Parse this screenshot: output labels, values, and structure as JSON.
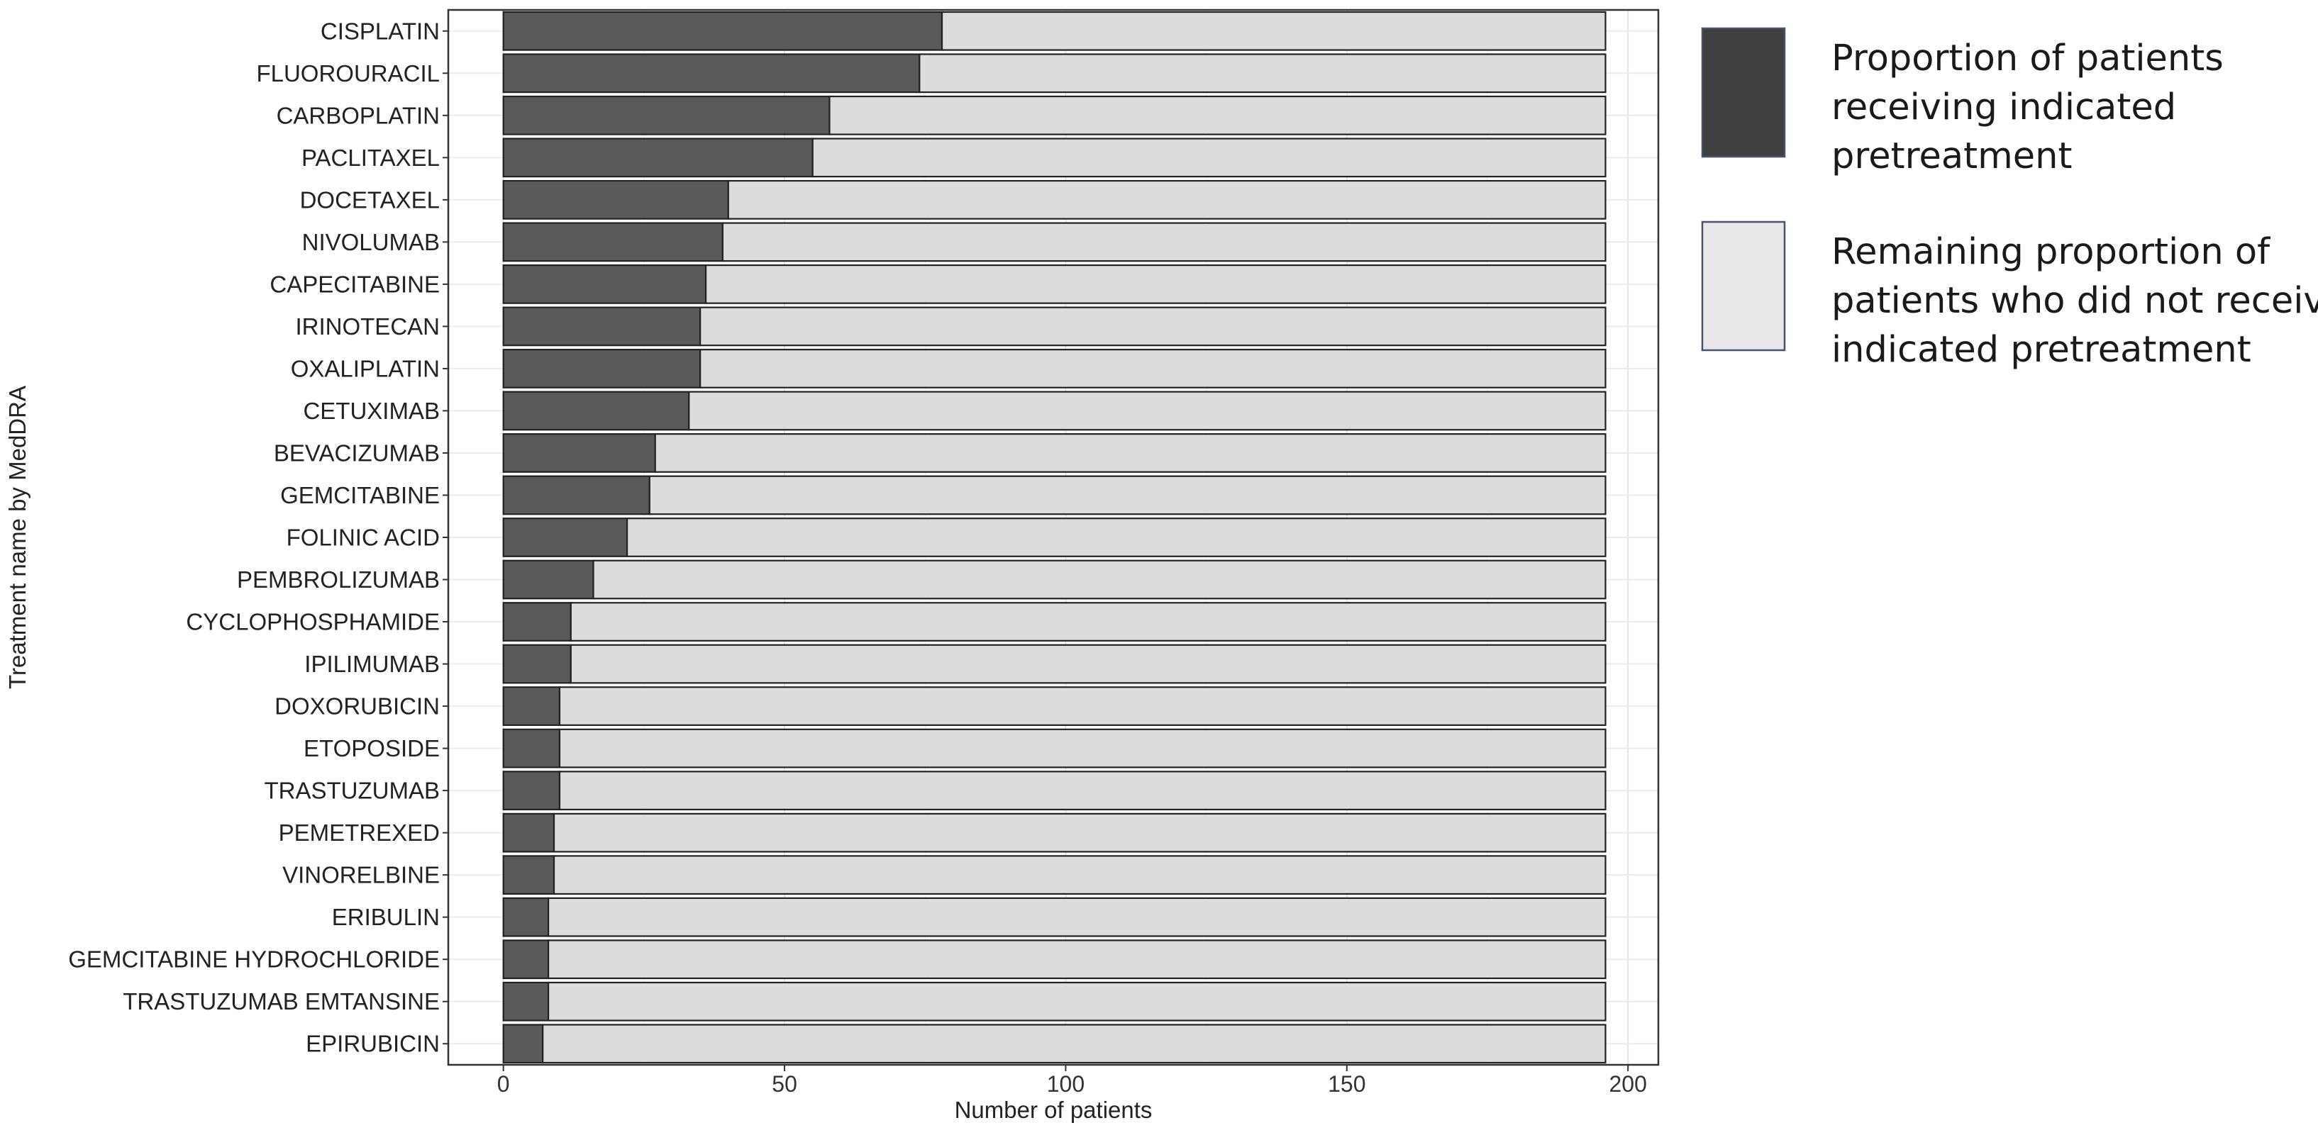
{
  "chart_data": {
    "type": "bar",
    "orientation": "horizontal",
    "stacked": true,
    "categories": [
      "CISPLATIN",
      "FLUOROURACIL",
      "CARBOPLATIN",
      "PACLITAXEL",
      "DOCETAXEL",
      "NIVOLUMAB",
      "CAPECITABINE",
      "IRINOTECAN",
      "OXALIPLATIN",
      "CETUXIMAB",
      "BEVACIZUMAB",
      "GEMCITABINE",
      "FOLINIC ACID",
      "PEMBROLIZUMAB",
      "CYCLOPHOSPHAMIDE",
      "IPILIMUMAB",
      "DOXORUBICIN",
      "ETOPOSIDE",
      "TRASTUZUMAB",
      "PEMETREXED",
      "VINORELBINE",
      "ERIBULIN",
      "GEMCITABINE HYDROCHLORIDE",
      "TRASTUZUMAB EMTANSINE",
      "EPIRUBICIN"
    ],
    "series": [
      {
        "name_lines": [
          "Proportion of patients",
          "receiving indicated",
          "pretreatment"
        ],
        "color": "#5a5a5a",
        "values": [
          78,
          74,
          58,
          55,
          40,
          39,
          36,
          35,
          35,
          33,
          27,
          26,
          22,
          16,
          12,
          12,
          10,
          10,
          10,
          9,
          9,
          8,
          8,
          8,
          7
        ]
      },
      {
        "name_lines": [
          "Remaining proportion of",
          "patients who did not receive",
          "indicated pretreatment"
        ],
        "color": "#dcdcdc",
        "values": [
          118,
          122,
          138,
          141,
          156,
          157,
          160,
          161,
          161,
          163,
          169,
          170,
          174,
          180,
          184,
          184,
          186,
          186,
          186,
          187,
          187,
          188,
          188,
          188,
          189
        ]
      }
    ],
    "legend_colors": [
      "#404040",
      "#e8e6e8"
    ],
    "legend_border": "#44546a",
    "xlabel": "Number of patients",
    "ylabel": "Treatment name by MedDRA",
    "xlim": [
      -9.8,
      205.4
    ],
    "xticks": [
      0,
      50,
      100,
      150,
      200
    ],
    "grid": true,
    "legend_position": "right"
  }
}
